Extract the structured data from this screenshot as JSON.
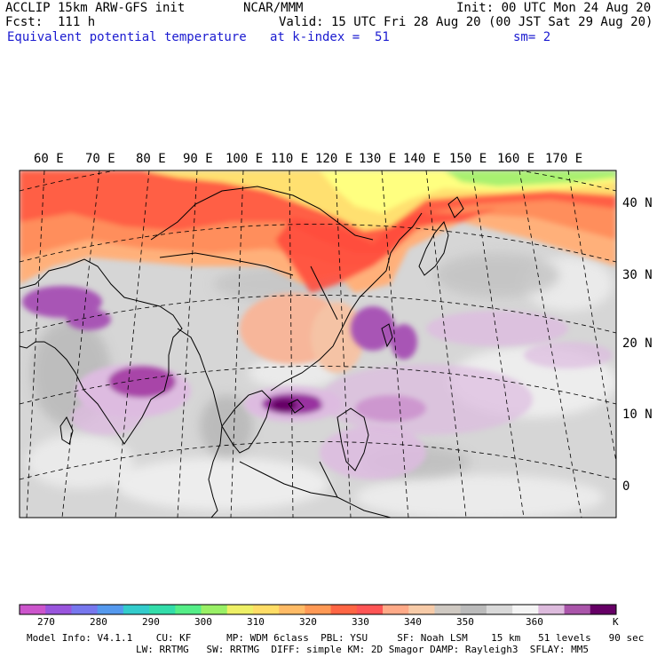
{
  "header": {
    "model": "ACCLIP 15km ARW-GFS init",
    "org": "NCAR/MMM",
    "init": "Init: 00 UTC Mon 24 Aug 20",
    "fcst": "Fcst:  111 h",
    "valid": "Valid: 15 UTC Fri 28 Aug 20 (00 JST Sat 29 Aug 20)",
    "field": "Equivalent potential temperature",
    "level": "at k-index =  51",
    "smooth": "sm= 2"
  },
  "lon_labels": [
    "60 E",
    "70 E",
    "80 E",
    "90 E",
    "100 E",
    "110 E",
    "120 E",
    "130 E",
    "140 E",
    "150 E",
    "160 E",
    "170 E"
  ],
  "lat_labels": [
    "40 N",
    "30 N",
    "20 N",
    "10 N",
    "0"
  ],
  "colorbar": {
    "colors": [
      "#cc55cc",
      "#9955dd",
      "#7777ee",
      "#5599ee",
      "#33cccc",
      "#33ddaa",
      "#55ee88",
      "#99f066",
      "#eef066",
      "#ffdd66",
      "#ffbb66",
      "#ff9955",
      "#ff6644",
      "#ff5555",
      "#ffaa88",
      "#f7cba8",
      "#cfc9c2",
      "#bbbbbb",
      "#d9d9d9",
      "#f5f5f5",
      "#ddbbdd",
      "#aa55aa",
      "#660066"
    ],
    "labels": [
      "270",
      "280",
      "290",
      "300",
      "310",
      "320",
      "330",
      "340",
      "350",
      "360"
    ],
    "unit": "K"
  },
  "footer": {
    "line1": "Model Info: V4.1.1    CU: KF      MP: WDM 6class  PBL: YSU     SF: Noah LSM    15 km   51 levels   90 sec",
    "line2": "LW: RRTMG   SW: RRTMG  DIFF: simple KM: 2D Smagor DAMP: Rayleigh3  SFLAY: MM5"
  }
}
